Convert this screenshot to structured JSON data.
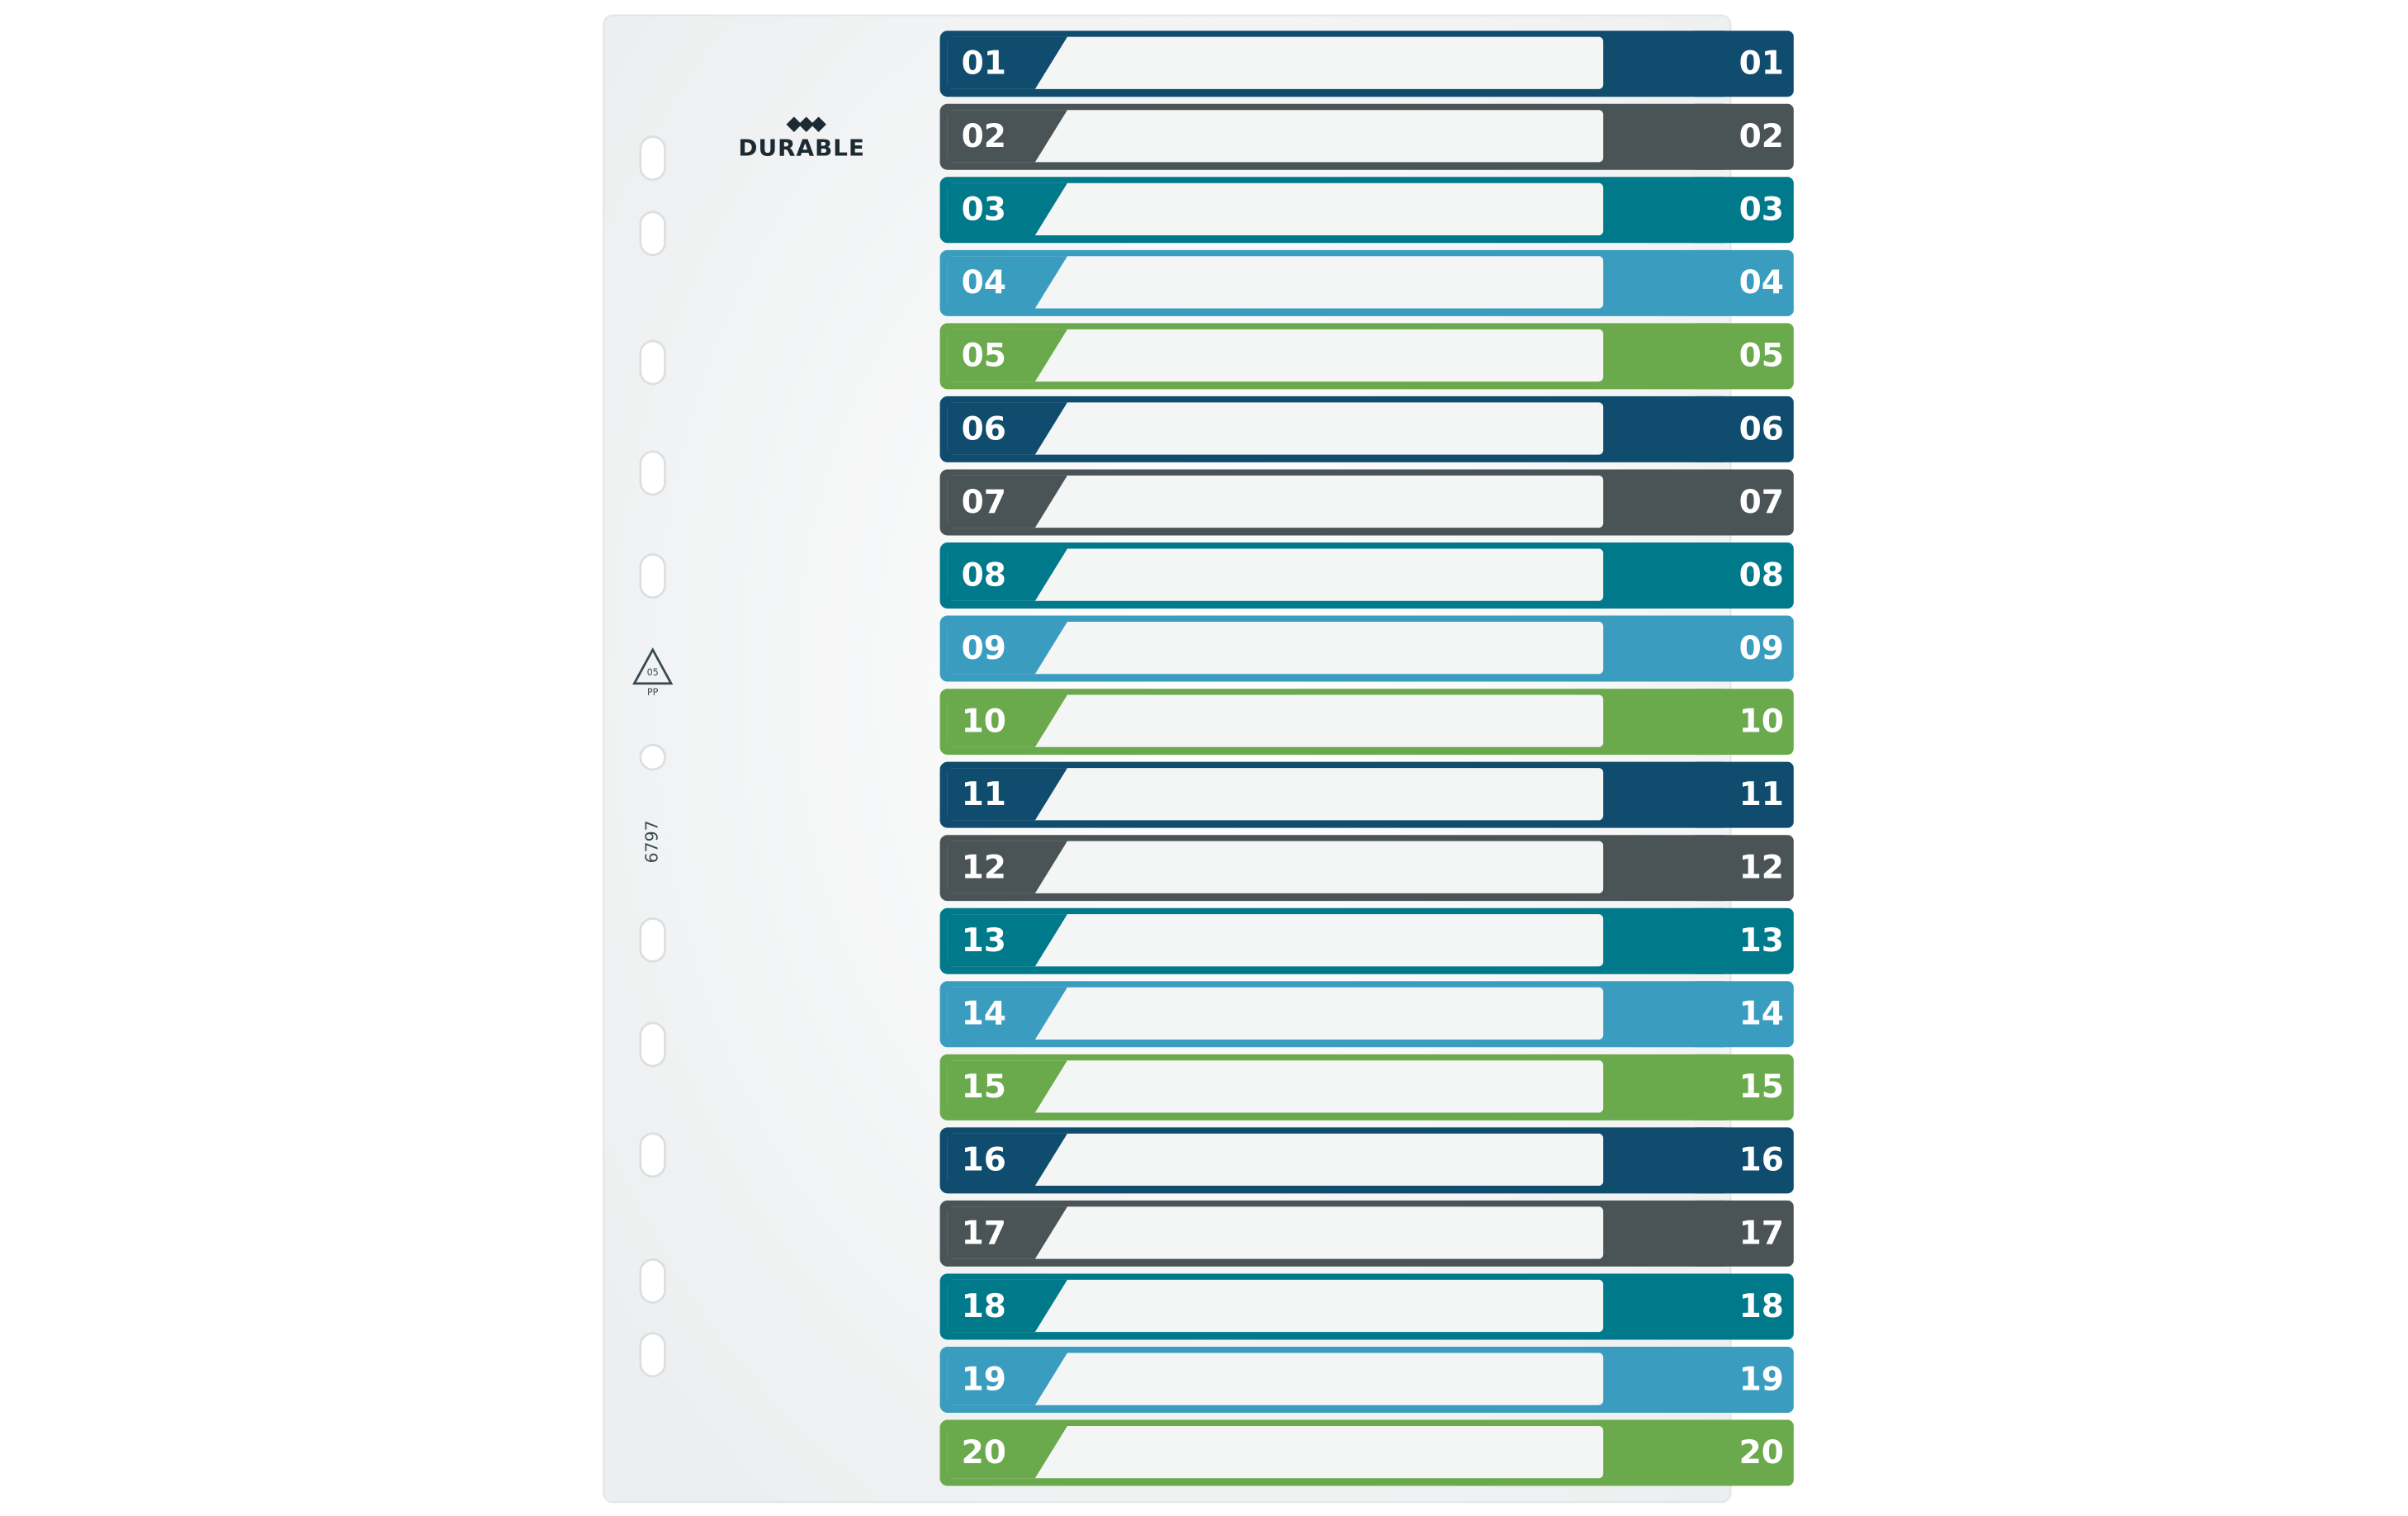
{
  "brand": "DURABLE",
  "recycle": {
    "code": "05",
    "material": "PP"
  },
  "product_code": "6797",
  "tabs": [
    {
      "label": "01"
    },
    {
      "label": "02"
    },
    {
      "label": "03"
    },
    {
      "label": "04"
    },
    {
      "label": "05"
    },
    {
      "label": "06"
    },
    {
      "label": "07"
    },
    {
      "label": "08"
    },
    {
      "label": "09"
    },
    {
      "label": "10"
    },
    {
      "label": "11"
    },
    {
      "label": "12"
    },
    {
      "label": "13"
    },
    {
      "label": "14"
    },
    {
      "label": "15"
    },
    {
      "label": "16"
    },
    {
      "label": "17"
    },
    {
      "label": "18"
    },
    {
      "label": "19"
    },
    {
      "label": "20"
    }
  ]
}
